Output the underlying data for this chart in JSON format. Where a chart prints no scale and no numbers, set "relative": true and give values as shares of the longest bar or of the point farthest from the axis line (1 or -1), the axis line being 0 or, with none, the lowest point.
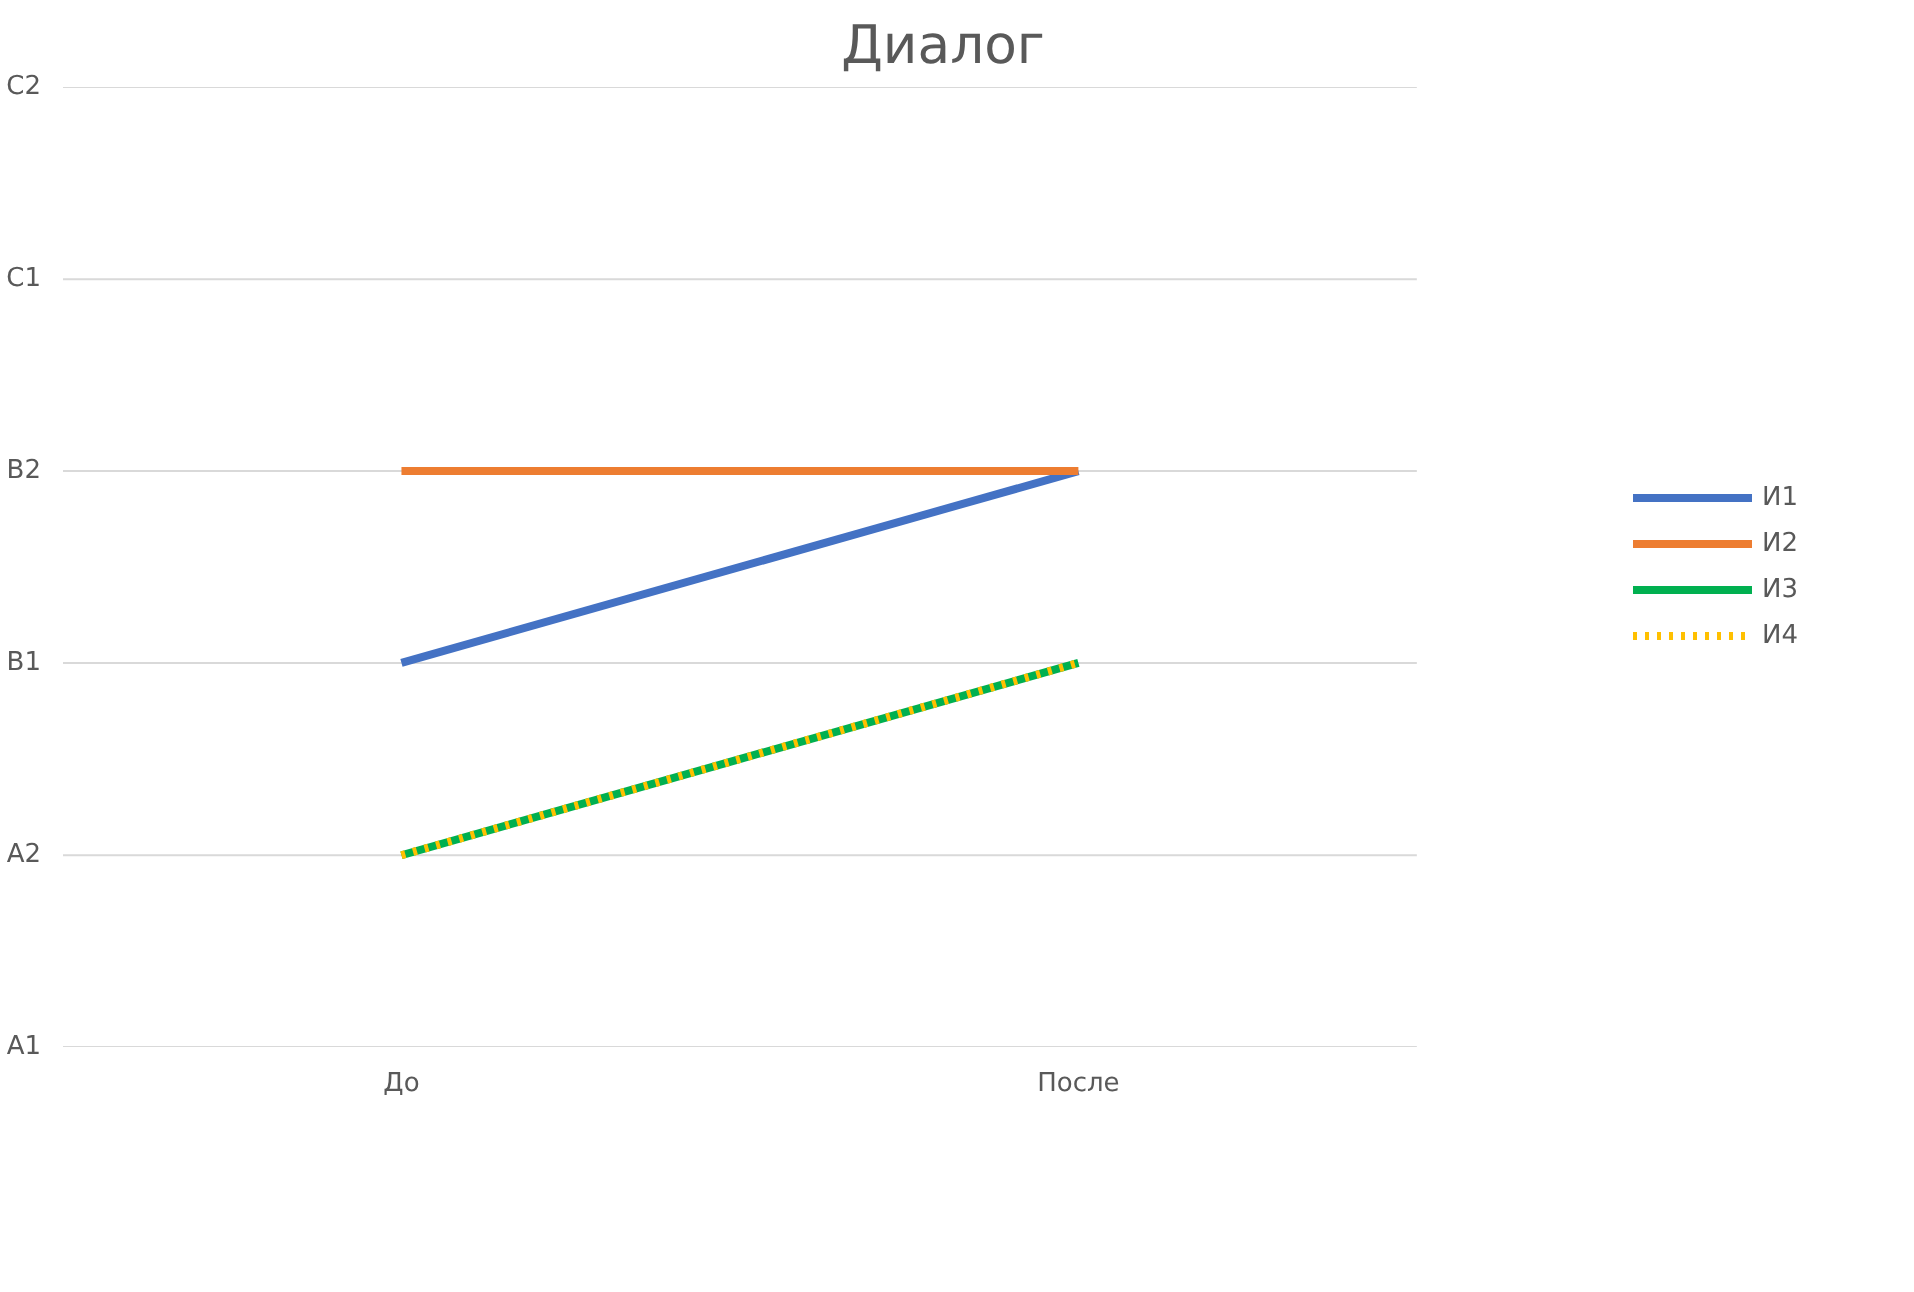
{
  "chart_data": {
    "type": "line",
    "title": "Диалог",
    "categories": [
      "До",
      "После"
    ],
    "relative": true,
    "series": [
      {
        "name": "И1",
        "color": "#4472c4",
        "values": [
          0.667,
          1
        ]
      },
      {
        "name": "И2",
        "color": "#ed7d31",
        "values": [
          1,
          1
        ]
      },
      {
        "name": "И3",
        "color": "#00b050",
        "values": [
          0.333,
          0.667
        ]
      },
      {
        "name": "И4",
        "color": "#ffc000",
        "values": [
          0.333,
          0.667
        ],
        "line_style": "dotted"
      }
    ],
    "ref_lines": [
      {
        "axis": "y",
        "value": 0,
        "label": "A1",
        "color": "#d9d9d9"
      },
      {
        "axis": "y",
        "value": 0.333,
        "label": "A2",
        "color": "#d9d9d9"
      },
      {
        "axis": "y",
        "value": 0.667,
        "label": "B1",
        "color": "#d9d9d9"
      },
      {
        "axis": "y",
        "value": 1,
        "label": "B2",
        "color": "#d9d9d9"
      },
      {
        "axis": "y",
        "value": 1.333,
        "label": "C1",
        "color": "#d9d9d9"
      },
      {
        "axis": "y",
        "value": 1.667,
        "label": "C2",
        "color": "#d9d9d9"
      }
    ],
    "legend": "right"
  }
}
